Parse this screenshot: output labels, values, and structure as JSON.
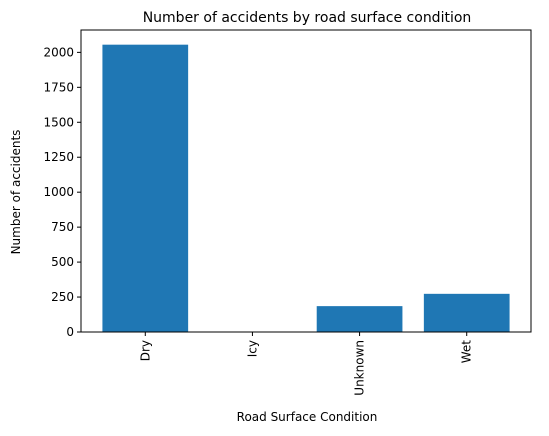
{
  "chart_data": {
    "type": "bar",
    "title": "Number of accidents by road surface condition",
    "xlabel": "Road Surface Condition",
    "ylabel": "Number of accidents",
    "categories": [
      "Dry",
      "Icy",
      "Unknown",
      "Wet"
    ],
    "values": [
      2055,
      2,
      185,
      273
    ],
    "ylim": [
      0,
      2160
    ],
    "yticks": [
      0,
      250,
      500,
      750,
      1000,
      1250,
      1500,
      1750,
      2000
    ],
    "bar_color": "#1f77b4",
    "grid": false,
    "x_tick_rotation": "vertical"
  }
}
